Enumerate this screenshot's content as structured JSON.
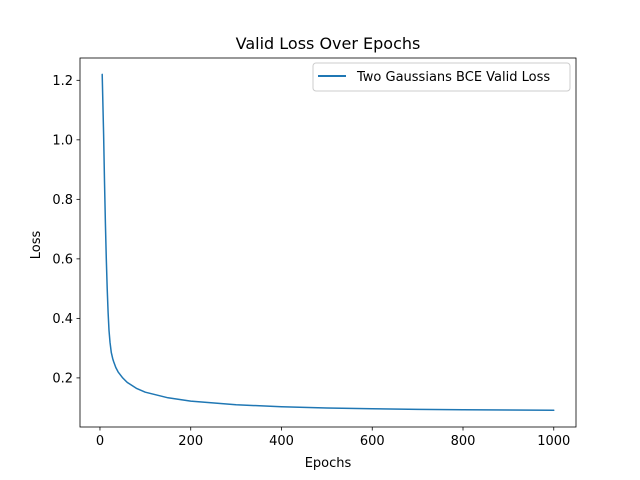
{
  "chart_data": {
    "type": "line",
    "title": "Valid Loss Over Epochs",
    "xlabel": "Epochs",
    "ylabel": "Loss",
    "xlim": [
      -44,
      1049
    ],
    "ylim": [
      0.035,
      1.275
    ],
    "xticks": [
      0,
      200,
      400,
      600,
      800,
      1000
    ],
    "yticks": [
      0.2,
      0.4,
      0.6,
      0.8,
      1.0,
      1.2
    ],
    "ytick_labels": [
      "0.2",
      "0.4",
      "0.6",
      "0.8",
      "1.0",
      "1.2"
    ],
    "grid": false,
    "legend_position": "top-right",
    "series": [
      {
        "name": "Two Gaussians BCE Valid Loss",
        "color": "#1f77b4",
        "x": [
          5,
          8,
          10,
          12,
          14,
          16,
          18,
          20,
          22,
          25,
          28,
          30,
          35,
          40,
          50,
          60,
          80,
          100,
          150,
          200,
          300,
          400,
          500,
          600,
          700,
          800,
          900,
          1000
        ],
        "y": [
          1.22,
          1.02,
          0.86,
          0.72,
          0.6,
          0.5,
          0.42,
          0.36,
          0.32,
          0.285,
          0.265,
          0.255,
          0.235,
          0.22,
          0.2,
          0.185,
          0.165,
          0.152,
          0.133,
          0.122,
          0.11,
          0.103,
          0.099,
          0.096,
          0.094,
          0.093,
          0.092,
          0.091
        ]
      }
    ]
  }
}
